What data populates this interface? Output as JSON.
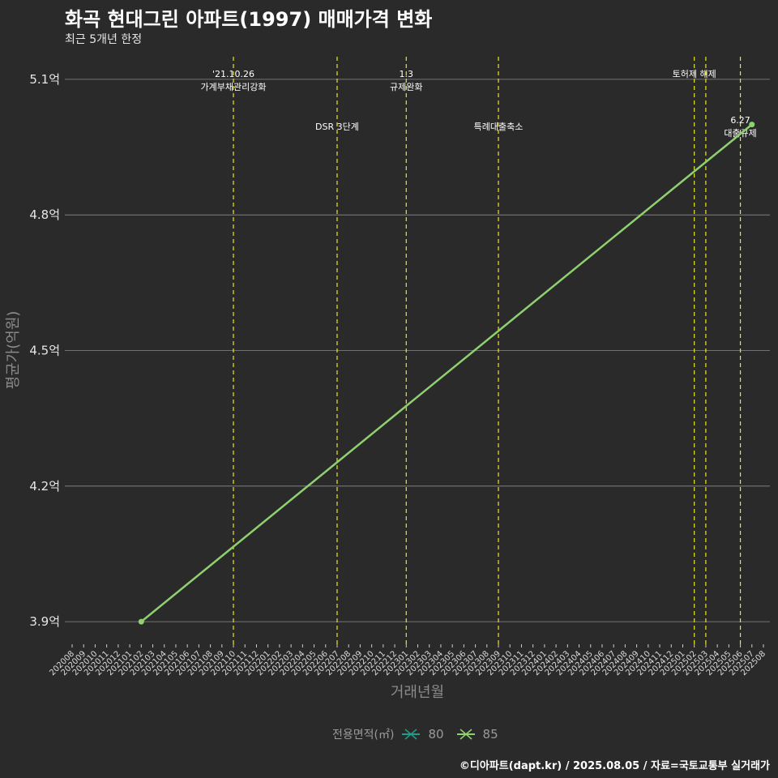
{
  "title": "화곡 현대그린 아파트(1997) 매매가격 변화",
  "subtitle": "최근 5개년 한정",
  "caption": "©디아파트(dapt.kr) / 2025.08.05 / 자료=국토교통부 실거래가",
  "legend": {
    "title": "전용면적(㎡)",
    "items": [
      {
        "label": "80",
        "color": "#1f9e89"
      },
      {
        "label": "85",
        "color": "#8fd16f"
      }
    ]
  },
  "colors": {
    "background": "#2b2a2b",
    "grid": "#8a8a8a",
    "event_line": "#e8e825",
    "series_85": "#8fd16f"
  },
  "chart_data": {
    "type": "line",
    "xlabel": "거래년월",
    "ylabel": "평균가(억원)",
    "ylim": [
      3.85,
      5.15
    ],
    "yticks": [
      {
        "value": 3.9,
        "label": "3.9억"
      },
      {
        "value": 4.2,
        "label": "4.2억"
      },
      {
        "value": 4.5,
        "label": "4.5억"
      },
      {
        "value": 4.8,
        "label": "4.8억"
      },
      {
        "value": 5.1,
        "label": "5.1억"
      }
    ],
    "categories": [
      "202008",
      "202009",
      "202010",
      "202011",
      "202012",
      "202101",
      "202102",
      "202103",
      "202104",
      "202105",
      "202106",
      "202107",
      "202108",
      "202109",
      "202110",
      "202111",
      "202112",
      "202201",
      "202202",
      "202203",
      "202204",
      "202205",
      "202206",
      "202207",
      "202208",
      "202209",
      "202210",
      "202211",
      "202212",
      "202301",
      "202302",
      "202303",
      "202304",
      "202305",
      "202306",
      "202307",
      "202308",
      "202309",
      "202310",
      "202311",
      "202312",
      "202401",
      "202402",
      "202403",
      "202404",
      "202405",
      "202406",
      "202407",
      "202408",
      "202409",
      "202410",
      "202411",
      "202412",
      "202501",
      "202502",
      "202503",
      "202504",
      "202505",
      "202506",
      "202507",
      "202508"
    ],
    "series": [
      {
        "name": "85",
        "color": "#8fd16f",
        "points": [
          {
            "x": "202102",
            "y": 3.9
          },
          {
            "x": "202507",
            "y": 5.0
          }
        ]
      },
      {
        "name": "80",
        "color": "#1f9e89",
        "points": []
      }
    ],
    "events": [
      {
        "x": 14.0,
        "lines": [
          "'21.10.26",
          "가계부채관리강화"
        ],
        "row": 0
      },
      {
        "x": 23.0,
        "lines": [
          "DSR 3단계"
        ],
        "row": 1
      },
      {
        "x": 29.0,
        "lines": [
          "1.3",
          "규제완화"
        ],
        "row": 0
      },
      {
        "x": 37.0,
        "lines": [
          "특례대출축소"
        ],
        "row": 1
      },
      {
        "x": 54.0,
        "lines": [
          "토허제 해제"
        ],
        "row": 0
      },
      {
        "x": 55.0,
        "lines": [],
        "row": 0
      },
      {
        "x": 58.0,
        "lines": [
          "6.27",
          "대출규제"
        ],
        "row": 1
      }
    ]
  }
}
